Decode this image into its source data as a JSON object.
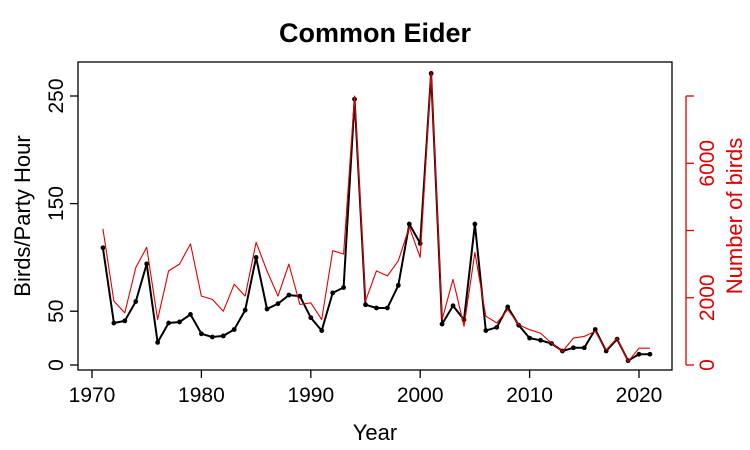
{
  "chart_data": {
    "type": "line",
    "title": "Common Eider",
    "xlabel": "Year",
    "ylabel": "Birds/Party Hour",
    "y2label": "Number of birds",
    "xlim": [
      1970,
      2022
    ],
    "ylim": [
      0,
      275
    ],
    "y2lim": [
      0,
      8200
    ],
    "x_ticks": [
      1970,
      1980,
      1990,
      2000,
      2010,
      2020
    ],
    "y_ticks": [
      0,
      50,
      150,
      250
    ],
    "y2_ticks": [
      0,
      2000,
      6000
    ],
    "grid": false,
    "colors": {
      "primary": "#000000",
      "secondary": "#e00000"
    },
    "x": [
      1971,
      1972,
      1973,
      1974,
      1975,
      1976,
      1977,
      1978,
      1979,
      1980,
      1981,
      1982,
      1983,
      1984,
      1985,
      1986,
      1987,
      1988,
      1989,
      1990,
      1991,
      1992,
      1993,
      1994,
      1995,
      1996,
      1997,
      1998,
      1999,
      2000,
      2001,
      2002,
      2003,
      2004,
      2005,
      2006,
      2007,
      2008,
      2009,
      2010,
      2011,
      2012,
      2013,
      2014,
      2015,
      2016,
      2017,
      2018,
      2019,
      2020,
      2021
    ],
    "series": [
      {
        "axis": "left",
        "markers": true,
        "values": [
          109,
          39,
          41,
          59,
          94,
          21,
          39,
          40,
          47,
          29,
          26,
          27,
          33,
          51,
          100,
          52,
          57,
          65,
          64,
          44,
          32,
          67,
          72,
          247,
          56,
          53,
          53,
          74,
          131,
          113,
          271,
          38,
          55,
          42,
          131,
          32,
          35,
          54,
          37,
          25,
          23,
          20,
          13,
          16,
          16,
          33,
          13,
          24,
          4,
          10,
          10
        ]
      },
      {
        "axis": "right",
        "markers": false,
        "values": [
          4050,
          1900,
          1550,
          2900,
          3500,
          1350,
          2800,
          3000,
          3600,
          2050,
          1950,
          1600,
          2400,
          2050,
          3650,
          2800,
          2050,
          3000,
          1800,
          1850,
          1350,
          3400,
          3300,
          8000,
          1900,
          2800,
          2650,
          3100,
          4100,
          3200,
          8700,
          1350,
          2550,
          1150,
          3350,
          1450,
          1250,
          1650,
          1200,
          1050,
          950,
          650,
          400,
          800,
          850,
          1000,
          450,
          800,
          100,
          500,
          500
        ]
      }
    ]
  }
}
